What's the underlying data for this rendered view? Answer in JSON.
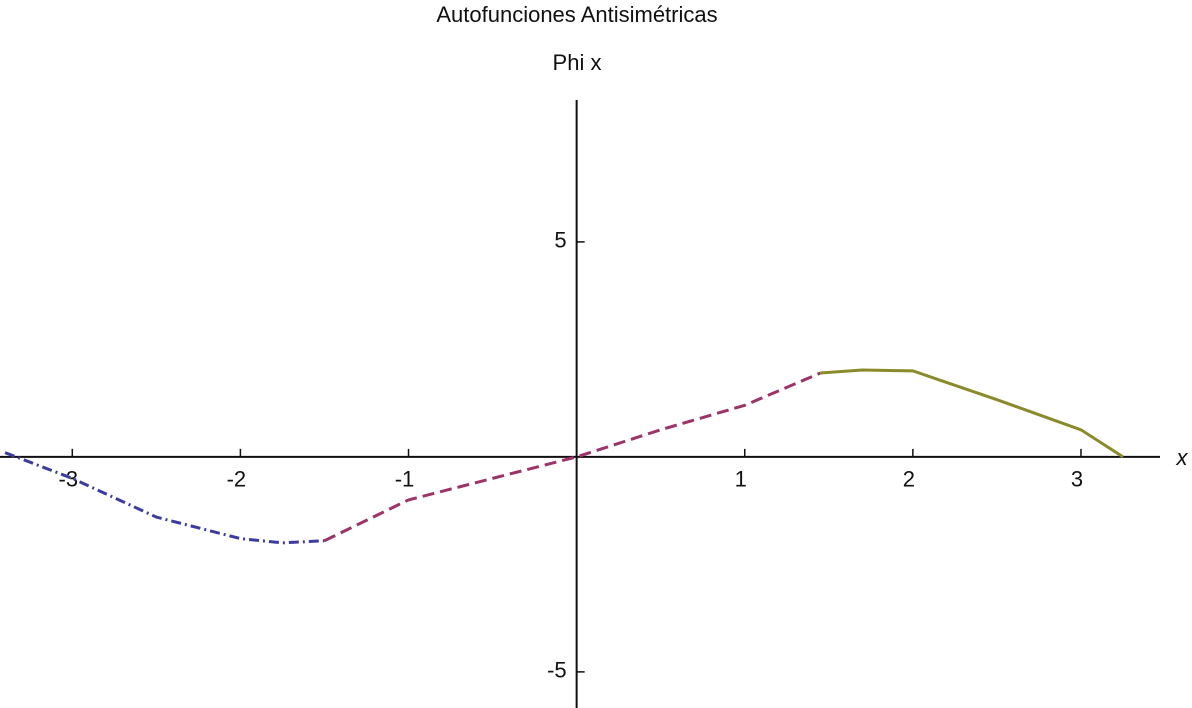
{
  "chart_data": {
    "type": "line",
    "title": "Autofunciones Antisimétricas",
    "ylabel": "Phi x",
    "xlabel": "x",
    "xlim": [
      -3.43,
      3.47
    ],
    "ylim": [
      -5.84,
      8.3
    ],
    "xticks": [
      -3,
      -2,
      -1,
      1,
      2,
      3
    ],
    "yticks": [
      -5,
      5
    ],
    "series": [
      {
        "color": "#3c3c9e",
        "dash": "10 4 2 4",
        "x": [
          -3.4,
          -3,
          -2.5,
          -2,
          -1.75,
          -1.5
        ],
        "values": [
          0.1,
          -0.5,
          -1.4,
          -1.9,
          -2.0,
          -1.95
        ]
      },
      {
        "color": "#9c3468",
        "dash": "12 6",
        "x": [
          -1.5,
          -1,
          -0.5,
          0,
          0.5,
          1,
          1.45
        ],
        "values": [
          -1.95,
          -1.0,
          -0.5,
          0,
          0.63,
          1.2,
          1.95
        ]
      },
      {
        "color": "#8a8a2a",
        "dash": "none",
        "x": [
          1.45,
          1.7,
          2,
          2.5,
          3,
          3.25
        ],
        "values": [
          1.95,
          2.02,
          2.0,
          1.33,
          0.63,
          0
        ]
      }
    ]
  }
}
